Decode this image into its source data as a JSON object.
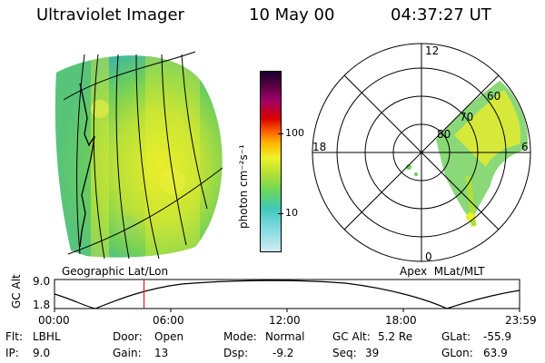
{
  "header": {
    "title": "Ultraviolet Imager",
    "date": "10 May 00",
    "time": "04:37:27 UT"
  },
  "colorbar": {
    "unit_label": "photon cm⁻²s⁻¹",
    "ticks": [
      "100",
      "10"
    ],
    "scale": "log"
  },
  "left_panel": {
    "caption": "Geographic Lat/Lon"
  },
  "polar_plot": {
    "caption": "Apex  MLat/MLT",
    "mlt_labels": [
      "12",
      "18",
      "6",
      "0"
    ],
    "mlat_labels": [
      "60",
      "70",
      "80"
    ]
  },
  "altitude_plot": {
    "ylabel": "GC Alt",
    "yticks": [
      "9.0",
      "1.8"
    ],
    "xticks": [
      "00:00",
      "06:00",
      "12:00",
      "18:00",
      "23:59"
    ],
    "marker_time": "04:37",
    "marker_color": "#dd0000"
  },
  "info": {
    "flt_label": "Flt:",
    "flt_value": "LBHL",
    "ip_label": "IP:",
    "ip_value": "9.0",
    "door_label": "Door:",
    "door_value": "Open",
    "gain_label": "Gain:",
    "gain_value": "13",
    "mode_label": "Mode:",
    "mode_value": "Normal",
    "dsp_label": "Dsp:",
    "dsp_value": "-9.2",
    "gcalt_label": "GC Alt:",
    "gcalt_value": "5.2 Re",
    "seq_label": "Seq:",
    "seq_value": "39",
    "glat_label": "GLat:",
    "glat_value": "-55.9",
    "glon_label": "GLon:",
    "glon_value": "63.9"
  }
}
